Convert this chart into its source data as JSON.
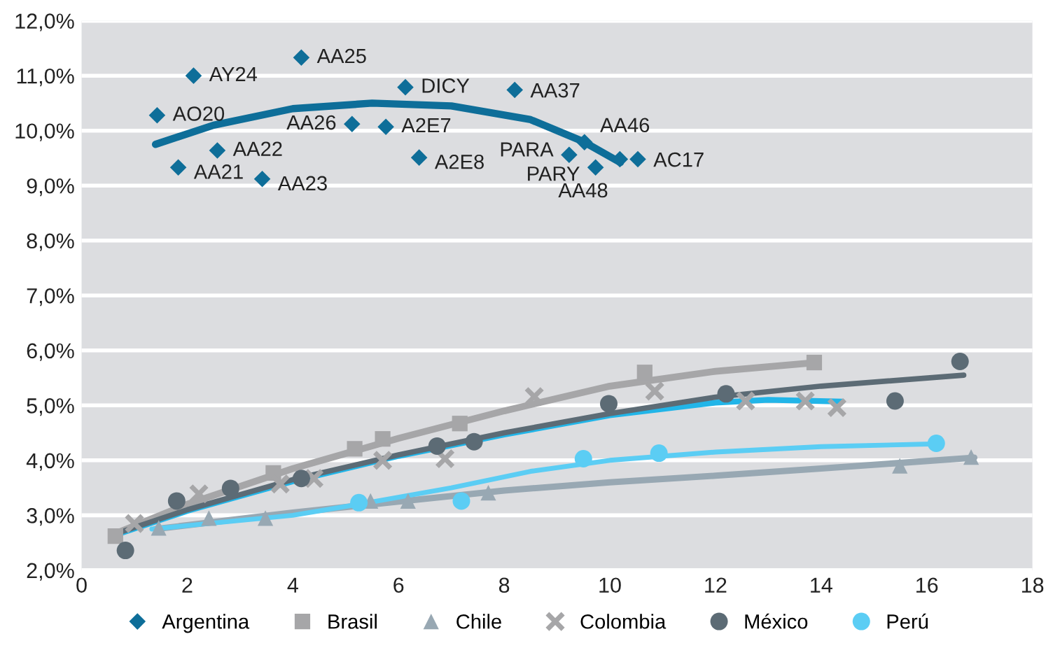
{
  "chart_data": {
    "type": "scatter",
    "xlim": [
      0,
      18
    ],
    "xticks": [
      0,
      2,
      4,
      6,
      8,
      10,
      12,
      14,
      16,
      18
    ],
    "ylim": [
      2,
      12
    ],
    "yticks": [
      {
        "value": 2,
        "label": "2,0%"
      },
      {
        "value": 3,
        "label": "3,0%"
      },
      {
        "value": 4,
        "label": "4,0%"
      },
      {
        "value": 5,
        "label": "5,0%"
      },
      {
        "value": 6,
        "label": "6,0%"
      },
      {
        "value": 7,
        "label": "7,0%"
      },
      {
        "value": 8,
        "label": "8,0%"
      },
      {
        "value": 9,
        "label": "9,0%"
      },
      {
        "value": 10,
        "label": "10,0%"
      },
      {
        "value": 11,
        "label": "11,0%"
      },
      {
        "value": 12,
        "label": "12,0%"
      }
    ],
    "grid": "y",
    "legend": "bottom",
    "series": [
      {
        "name": "Argentina",
        "marker": "diamond",
        "color": "#0e6e99",
        "x": [
          1.43,
          2.12,
          1.83,
          2.57,
          3.42,
          4.16,
          5.12,
          5.76,
          6.39,
          6.13,
          8.2,
          9.23,
          9.52,
          9.73,
          10.19,
          10.53
        ],
        "values": [
          10.28,
          11.0,
          9.33,
          9.64,
          9.12,
          11.33,
          10.12,
          10.07,
          9.51,
          10.79,
          10.74,
          9.56,
          9.79,
          9.33,
          9.48,
          9.48
        ]
      },
      {
        "name": "Brasil",
        "marker": "square",
        "color": "#a6a6a8",
        "x": [
          0.64,
          3.63,
          5.17,
          5.7,
          7.16,
          10.66,
          13.87
        ],
        "values": [
          2.62,
          3.77,
          4.21,
          4.39,
          4.67,
          5.6,
          5.78
        ]
      },
      {
        "name": "Chile",
        "marker": "triangle",
        "color": "#98a8b3",
        "x": [
          1.46,
          2.41,
          3.48,
          5.47,
          6.18,
          7.7,
          15.49,
          16.84
        ],
        "values": [
          2.77,
          2.95,
          2.95,
          3.26,
          3.26,
          3.41,
          3.9,
          4.06
        ]
      },
      {
        "name": "Colombia",
        "marker": "cross",
        "color": "#a6a6a8",
        "x": [
          1.0,
          2.22,
          3.76,
          4.4,
          5.7,
          6.88,
          8.57,
          10.85,
          12.57,
          13.7,
          14.3
        ],
        "values": [
          2.85,
          3.39,
          3.57,
          3.67,
          4.0,
          4.03,
          5.16,
          5.26,
          5.08,
          5.08,
          4.96
        ]
      },
      {
        "name": "México",
        "marker": "circle",
        "color": "#5c6b75",
        "x": [
          0.83,
          1.8,
          2.82,
          4.16,
          6.73,
          7.43,
          9.98,
          12.2,
          15.4,
          16.63
        ],
        "values": [
          2.36,
          3.26,
          3.49,
          3.67,
          4.26,
          4.34,
          5.03,
          5.21,
          5.08,
          5.8
        ]
      },
      {
        "name": "Perú",
        "marker": "circle",
        "color": "#5bcdf4",
        "x": [
          5.25,
          7.19,
          9.5,
          10.93,
          16.18
        ],
        "values": [
          3.23,
          3.26,
          4.03,
          4.13,
          4.31
        ]
      },
      {
        "type": "line",
        "color": "#0e6e99",
        "x": [
          1.4,
          2.5,
          4,
          5.5,
          7,
          8.5,
          9.5,
          10.2
        ],
        "values": [
          9.75,
          10.1,
          10.4,
          10.5,
          10.45,
          10.2,
          9.8,
          9.42
        ]
      },
      {
        "type": "line",
        "color": "#a6a6a8",
        "x": [
          0.6,
          2,
          4,
          6,
          8,
          10,
          12,
          13.9
        ],
        "values": [
          2.65,
          3.2,
          3.85,
          4.4,
          4.9,
          5.35,
          5.62,
          5.78
        ]
      },
      {
        "type": "line",
        "color": "#98a8b3",
        "x": [
          1.4,
          4,
          6,
          8,
          10,
          12,
          14,
          16.9
        ],
        "values": [
          2.75,
          3.05,
          3.25,
          3.45,
          3.6,
          3.72,
          3.85,
          4.05
        ]
      },
      {
        "type": "line",
        "color": "#22b5e8",
        "x": [
          0.6,
          2,
          4,
          6,
          8,
          10,
          12,
          13,
          14.4
        ],
        "values": [
          2.63,
          3.08,
          3.62,
          4.08,
          4.47,
          4.82,
          5.05,
          5.1,
          5.07
        ]
      },
      {
        "type": "line",
        "color": "#5c6b75",
        "x": [
          0.6,
          2,
          4,
          6,
          8,
          10,
          12,
          14,
          16.7
        ],
        "values": [
          2.65,
          3.1,
          3.65,
          4.1,
          4.5,
          4.85,
          5.15,
          5.35,
          5.55
        ]
      },
      {
        "type": "line",
        "color": "#5bcdf4",
        "x": [
          1.33,
          4,
          5.25,
          7,
          8.5,
          10,
          12,
          14,
          16.2
        ],
        "values": [
          2.75,
          3.0,
          3.2,
          3.5,
          3.8,
          4.0,
          4.15,
          4.25,
          4.3
        ]
      }
    ],
    "annotations": [
      {
        "text": "AO20",
        "x": 1.43,
        "y": 10.28
      },
      {
        "text": "AY24",
        "x": 2.12,
        "y": 11.0
      },
      {
        "text": "AA21",
        "x": 1.83,
        "y": 9.33
      },
      {
        "text": "AA22",
        "x": 2.57,
        "y": 9.64
      },
      {
        "text": "AA23",
        "x": 3.42,
        "y": 9.12
      },
      {
        "text": "AA25",
        "x": 4.16,
        "y": 11.33
      },
      {
        "text": "AA26",
        "x": 5.12,
        "y": 10.12
      },
      {
        "text": "A2E7",
        "x": 5.76,
        "y": 10.07
      },
      {
        "text": "A2E8",
        "x": 6.39,
        "y": 9.51
      },
      {
        "text": "DICY",
        "x": 6.13,
        "y": 10.79
      },
      {
        "text": "AA37",
        "x": 8.2,
        "y": 10.74
      },
      {
        "text": "PARA",
        "x": 9.23,
        "y": 9.56
      },
      {
        "text": "AA46",
        "x": 9.52,
        "y": 9.79
      },
      {
        "text": "PARY",
        "x": 9.73,
        "y": 9.33
      },
      {
        "text": "AA48",
        "x": 10.19,
        "y": 9.48
      },
      {
        "text": "AC17",
        "x": 10.53,
        "y": 9.48
      }
    ]
  }
}
